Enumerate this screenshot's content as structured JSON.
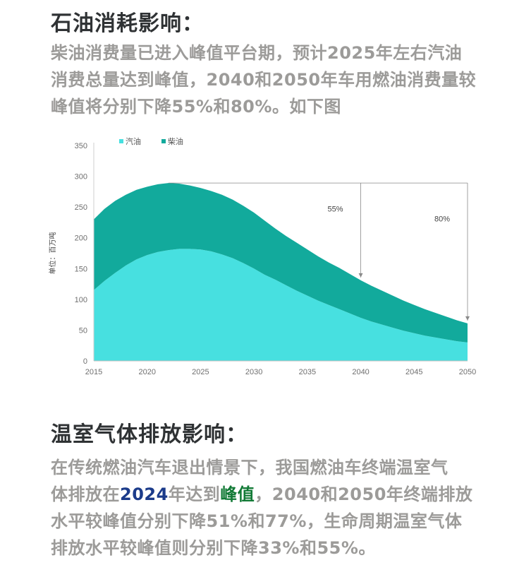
{
  "section1": {
    "heading": "石油消耗影响：",
    "lines": [
      "柴油消费量已进入峰值平台期，预计2025年左右汽油",
      "消费总量达到峰值，2040和2050年车用燃油消费量较",
      "峰值将分别下降55%和80%。如下图"
    ]
  },
  "section2": {
    "heading": "温室气体排放影响：",
    "line1": "在传统燃油汽车退出情景下，我国燃油车终端温室气",
    "line2_before": "体排放在",
    "line2_year": "2024",
    "line2_mid": "年达到",
    "line2_peak": "峰值",
    "line2_after": "，2040和2050年终端排放",
    "line3": "水平较峰值分别下降51%和77%，生命周期温室气体",
    "line4": "排放水平较峰值则分别下降33%和55%。"
  },
  "chart_data": {
    "type": "area",
    "stacked": true,
    "x": [
      2015,
      2016,
      2017,
      2018,
      2019,
      2020,
      2021,
      2022,
      2023,
      2024,
      2025,
      2026,
      2027,
      2028,
      2029,
      2030,
      2031,
      2032,
      2033,
      2034,
      2035,
      2036,
      2037,
      2038,
      2039,
      2040,
      2041,
      2042,
      2043,
      2044,
      2045,
      2046,
      2047,
      2048,
      2049,
      2050
    ],
    "series": [
      {
        "name": "汽油",
        "color": "#47e0e0",
        "values": [
          115,
          130,
          143,
          155,
          165,
          172,
          177,
          180,
          182,
          182,
          181,
          178,
          173,
          167,
          159,
          150,
          140,
          132,
          123,
          114,
          106,
          98,
          91,
          84,
          77,
          70,
          64,
          59,
          54,
          49,
          45,
          41,
          38,
          35,
          32,
          30
        ]
      },
      {
        "name": "柴油",
        "color": "#12aa9c",
        "values": [
          115,
          117,
          117,
          115,
          113,
          111,
          110,
          109,
          106,
          103,
          100,
          98,
          97,
          95,
          93,
          91,
          88,
          83,
          80,
          78,
          75,
          72,
          69,
          67,
          64,
          61,
          58,
          55,
          52,
          49,
          46,
          43,
          40,
          37,
          34,
          31
        ]
      }
    ],
    "ylabel": "单位：百万吨",
    "xlim": [
      2015,
      2050
    ],
    "ylim": [
      0,
      350
    ],
    "yticks": [
      0,
      50,
      100,
      150,
      200,
      250,
      300,
      350
    ],
    "xticks": [
      2015,
      2020,
      2025,
      2030,
      2035,
      2040,
      2045,
      2050
    ],
    "legend_position": "top-left",
    "annotations": [
      {
        "text": "55%",
        "x": 2040
      },
      {
        "text": "80%",
        "x": 2050
      }
    ]
  }
}
